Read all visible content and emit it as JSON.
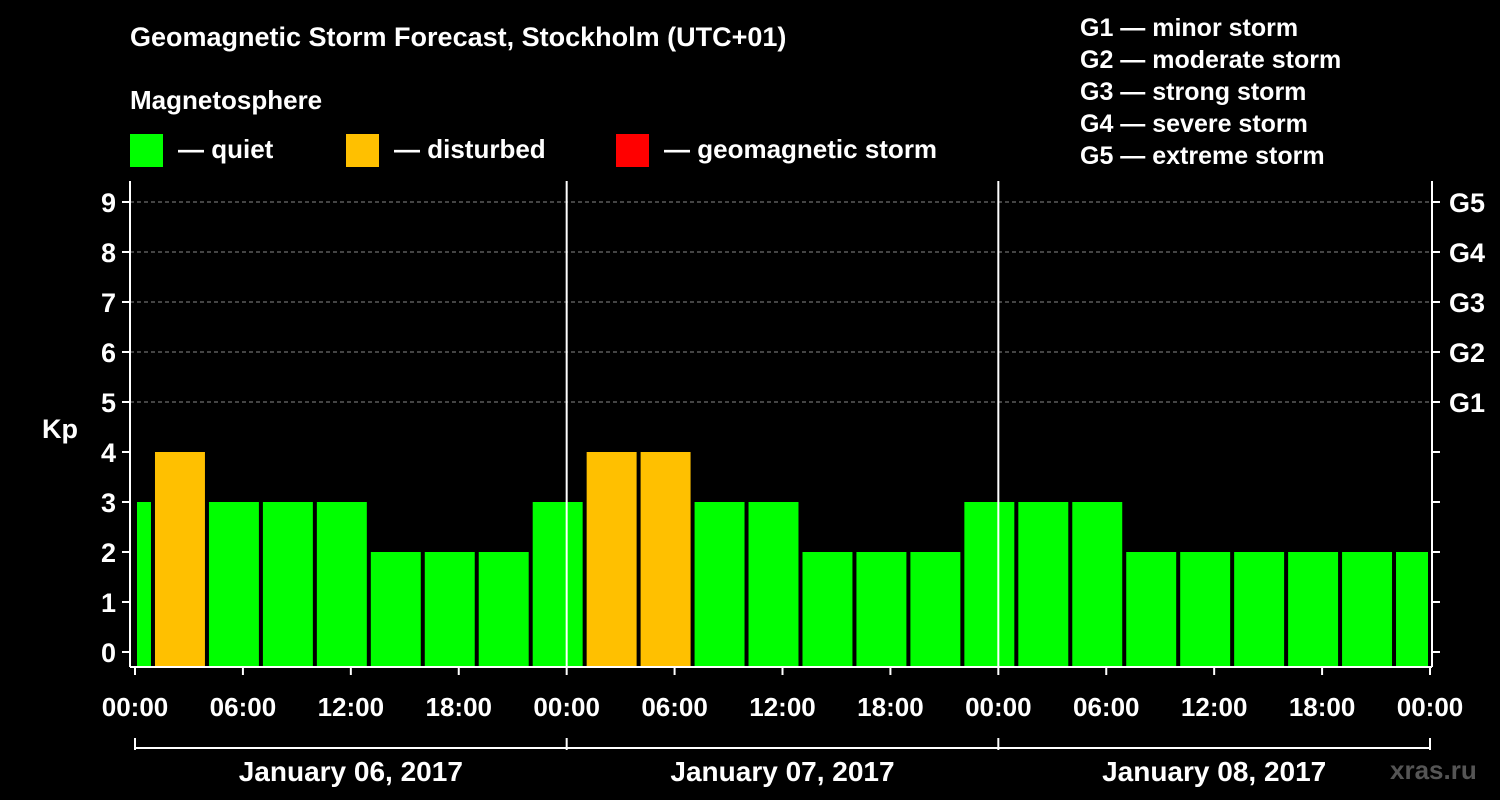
{
  "header": {
    "title": "Geomagnetic Storm Forecast, Stockholm (UTC+01)",
    "magnetosphere_label": "Magnetosphere"
  },
  "legend": {
    "quiet": {
      "label": "— quiet",
      "color": "#00ff00"
    },
    "disturbed": {
      "label": "— disturbed",
      "color": "#ffc000"
    },
    "storm": {
      "label": "— geomagnetic storm",
      "color": "#ff0000"
    }
  },
  "storm_scale": [
    "G1 — minor storm",
    "G2 — moderate storm",
    "G3 — strong storm",
    "G4 — severe storm",
    "G5 — extreme storm"
  ],
  "chart_data": {
    "type": "bar",
    "title": "Geomagnetic Storm Forecast, Stockholm (UTC+01)",
    "ylabel": "Kp",
    "ylim": [
      0,
      9
    ],
    "y_ticks": [
      "0",
      "1",
      "2",
      "3",
      "4",
      "5",
      "6",
      "7",
      "8",
      "9"
    ],
    "right_ticks": [
      {
        "kp": 5,
        "label": "G1"
      },
      {
        "kp": 6,
        "label": "G2"
      },
      {
        "kp": 7,
        "label": "G3"
      },
      {
        "kp": 8,
        "label": "G4"
      },
      {
        "kp": 9,
        "label": "G5"
      }
    ],
    "x_ticks": [
      "00:00",
      "06:00",
      "12:00",
      "18:00",
      "00:00",
      "06:00",
      "12:00",
      "18:00",
      "00:00",
      "06:00",
      "12:00",
      "18:00",
      "00:00"
    ],
    "days": [
      "January 06, 2017",
      "January 07, 2017",
      "January 08, 2017"
    ],
    "x_range_hours": [
      0,
      72
    ],
    "bars": [
      {
        "start_h": 0,
        "end_h": 1,
        "kp": 3,
        "level": "quiet"
      },
      {
        "start_h": 1,
        "end_h": 4,
        "kp": 4,
        "level": "disturbed"
      },
      {
        "start_h": 4,
        "end_h": 7,
        "kp": 3,
        "level": "quiet"
      },
      {
        "start_h": 7,
        "end_h": 10,
        "kp": 3,
        "level": "quiet"
      },
      {
        "start_h": 10,
        "end_h": 13,
        "kp": 3,
        "level": "quiet"
      },
      {
        "start_h": 13,
        "end_h": 16,
        "kp": 2,
        "level": "quiet"
      },
      {
        "start_h": 16,
        "end_h": 19,
        "kp": 2,
        "level": "quiet"
      },
      {
        "start_h": 19,
        "end_h": 22,
        "kp": 2,
        "level": "quiet"
      },
      {
        "start_h": 22,
        "end_h": 25,
        "kp": 3,
        "level": "quiet"
      },
      {
        "start_h": 25,
        "end_h": 28,
        "kp": 4,
        "level": "disturbed"
      },
      {
        "start_h": 28,
        "end_h": 31,
        "kp": 4,
        "level": "disturbed"
      },
      {
        "start_h": 31,
        "end_h": 34,
        "kp": 3,
        "level": "quiet"
      },
      {
        "start_h": 34,
        "end_h": 37,
        "kp": 3,
        "level": "quiet"
      },
      {
        "start_h": 37,
        "end_h": 40,
        "kp": 2,
        "level": "quiet"
      },
      {
        "start_h": 40,
        "end_h": 43,
        "kp": 2,
        "level": "quiet"
      },
      {
        "start_h": 43,
        "end_h": 46,
        "kp": 2,
        "level": "quiet"
      },
      {
        "start_h": 46,
        "end_h": 49,
        "kp": 3,
        "level": "quiet"
      },
      {
        "start_h": 49,
        "end_h": 52,
        "kp": 3,
        "level": "quiet"
      },
      {
        "start_h": 52,
        "end_h": 55,
        "kp": 3,
        "level": "quiet"
      },
      {
        "start_h": 55,
        "end_h": 58,
        "kp": 2,
        "level": "quiet"
      },
      {
        "start_h": 58,
        "end_h": 61,
        "kp": 2,
        "level": "quiet"
      },
      {
        "start_h": 61,
        "end_h": 64,
        "kp": 2,
        "level": "quiet"
      },
      {
        "start_h": 64,
        "end_h": 67,
        "kp": 2,
        "level": "quiet"
      },
      {
        "start_h": 67,
        "end_h": 70,
        "kp": 2,
        "level": "quiet"
      },
      {
        "start_h": 70,
        "end_h": 72,
        "kp": 2,
        "level": "quiet"
      }
    ]
  },
  "watermark": "xras.ru"
}
